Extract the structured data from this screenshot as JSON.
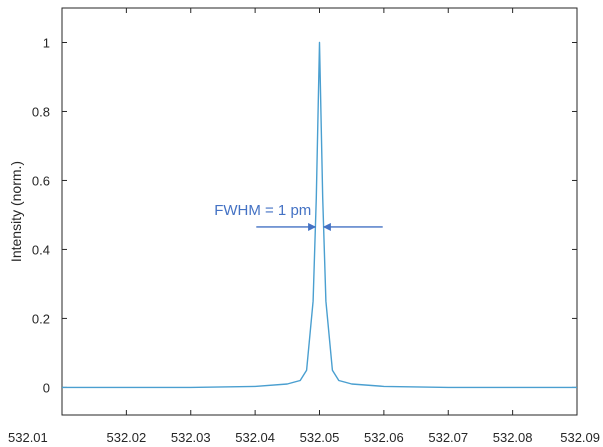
{
  "chart_data": {
    "type": "line",
    "title": "",
    "xlabel": "",
    "ylabel": "Intensity (norm.)",
    "xlim": [
      532.01,
      532.09
    ],
    "ylim": [
      -0.08,
      1.1
    ],
    "xticks": [
      "532.01",
      "532.02",
      "532.03",
      "532.04",
      "532.05",
      "532.06",
      "532.07",
      "532.08",
      "532.09"
    ],
    "yticks": [
      "0",
      "0.2",
      "0.4",
      "0.6",
      "0.8",
      "1"
    ],
    "grid": false,
    "series": [
      {
        "x": [
          532.01,
          532.02,
          532.03,
          532.04,
          532.045,
          532.047,
          532.048,
          532.049,
          532.0495,
          532.05,
          532.0505,
          532.051,
          532.052,
          532.053,
          532.055,
          532.06,
          532.07,
          532.08,
          532.09
        ],
        "y": [
          0.0,
          0.0,
          0.0,
          0.003,
          0.01,
          0.02,
          0.05,
          0.25,
          0.55,
          1.0,
          0.55,
          0.25,
          0.05,
          0.02,
          0.01,
          0.003,
          0.0,
          0.0,
          0.0
        ]
      }
    ],
    "colors": {
      "line": "#4a9fd0",
      "annotation": "#4472c4",
      "axis": "#262626"
    },
    "annotations": [
      {
        "text": "FWHM = 1 pm",
        "x_left": 532.0495,
        "x_right": 532.0505,
        "y": 0.5
      }
    ]
  }
}
